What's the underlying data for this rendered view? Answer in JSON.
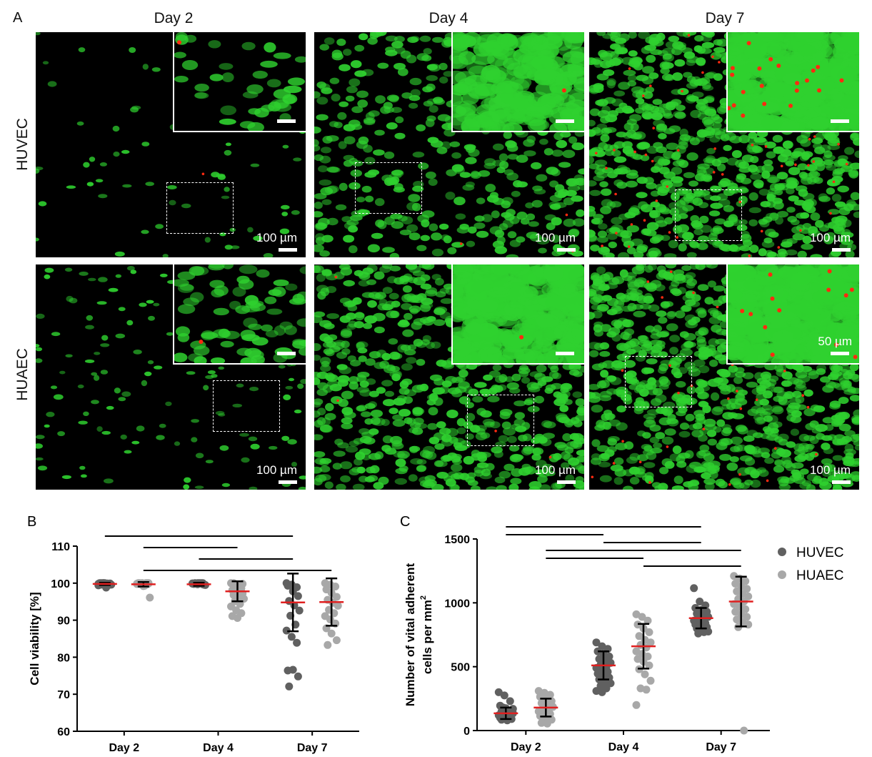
{
  "panel_a": {
    "letter": "A",
    "columns": [
      "Day 2",
      "Day 4",
      "Day 7"
    ],
    "rows": [
      "HUVEC",
      "HUAEC"
    ],
    "scale_labels": {
      "main": "100 µm",
      "inset_huaec_day7": "50 µm"
    },
    "colors": {
      "live_stain": "#2fd12f",
      "dead_stain": "#ff2a10"
    }
  },
  "chart_data": [
    {
      "panel": "B",
      "type": "scatter",
      "ylabel": "Cell viability [%]",
      "xlabel": "",
      "categories": [
        "Day 2",
        "Day 4",
        "Day 7"
      ],
      "ylim": [
        60,
        110
      ],
      "yticks": [
        60,
        70,
        80,
        90,
        100,
        110
      ],
      "series": [
        {
          "name": "HUVEC",
          "color": "#606060",
          "mean": [
            99.8,
            99.7,
            94.8
          ],
          "sd": [
            0.3,
            0.4,
            7.8
          ],
          "points": [
            [
              99.8,
              100,
              99.5,
              100,
              99.9,
              99.7,
              100,
              98.8,
              99.6,
              100,
              99.9,
              99.4,
              100,
              99.8,
              99.7,
              100,
              99.9,
              99.6
            ],
            [
              99.9,
              100,
              99.7,
              99.8,
              100,
              99.6,
              99.9,
              100,
              99.5,
              99.8,
              100,
              99.9,
              99.7,
              100,
              99.8,
              99.9,
              99.6,
              100
            ],
            [
              100,
              99.6,
              98.9,
              99.3,
              97.8,
              96.5,
              95.2,
              94,
              92.6,
              91.2,
              88.8,
              87.2,
              85.5,
              83.9,
              76.4,
              76.6,
              74.8,
              72.1
            ]
          ]
        },
        {
          "name": "HUAEC",
          "color": "#a8a8a8",
          "mean": [
            99.7,
            97.8,
            94.9
          ],
          "sd": [
            0.6,
            2.7,
            6.4
          ],
          "points": [
            [
              99.8,
              100,
              99.7,
              100,
              99.5,
              99.9,
              100,
              99.3,
              96.1,
              99.7,
              100,
              99.8,
              99.6,
              100,
              99.9,
              99.2,
              100,
              99.8
            ],
            [
              100,
              99.3,
              98.6,
              98.1,
              97.7,
              97.2,
              96.8,
              96.2,
              95.8,
              95.1,
              94.4,
              93.7,
              92.7,
              91.9,
              91.1,
              90.6,
              99.8,
              100
            ],
            [
              100,
              99.6,
              99.1,
              98.3,
              97.4,
              96.3,
              95.5,
              94.7,
              93.9,
              92.8,
              91.9,
              91.1,
              90.2,
              89.1,
              87.8,
              86.4,
              84.6,
              83.3
            ]
          ]
        }
      ],
      "significance": [
        [
          "Day 2 HUVEC",
          "Day 7 HUVEC"
        ],
        [
          "Day 2 HUAEC",
          "Day 4 HUAEC"
        ],
        [
          "Day 4 HUVEC",
          "Day 7 HUVEC"
        ],
        [
          "Day 2 HUAEC",
          "Day 7 HUAEC"
        ]
      ]
    },
    {
      "panel": "C",
      "type": "scatter",
      "ylabel": "Number of vital adherent cells per mm²",
      "ylabel_lines": [
        "Number of vital adherent",
        "cells per mm",
        "2"
      ],
      "xlabel": "",
      "categories": [
        "Day 2",
        "Day 4",
        "Day 7"
      ],
      "ylim": [
        0,
        1500
      ],
      "yticks": [
        0,
        500,
        1000,
        1500
      ],
      "legend": [
        {
          "name": "HUVEC",
          "color": "#606060"
        },
        {
          "name": "HUAEC",
          "color": "#a8a8a8"
        }
      ],
      "legend_position": "right",
      "series": [
        {
          "name": "HUVEC",
          "color": "#606060",
          "mean": [
            135,
            510,
            880
          ],
          "sd": [
            45,
            110,
            80
          ],
          "points": [
            [
              300,
              275,
              230,
              195,
              175,
              160,
              150,
              140,
              135,
              130,
              125,
              120,
              110,
              105,
              100,
              95,
              90,
              85,
              80,
              170,
              180
            ],
            [
              690,
              660,
              640,
              620,
              600,
              580,
              560,
              545,
              530,
              515,
              500,
              490,
              475,
              460,
              445,
              430,
              415,
              400,
              385,
              370,
              350,
              330,
              310,
              300
            ],
            [
              1115,
              1010,
              980,
              960,
              945,
              930,
              915,
              900,
              890,
              880,
              870,
              860,
              850,
              840,
              830,
              820,
              810,
              800,
              790,
              775,
              760,
              770
            ]
          ]
        },
        {
          "name": "HUAEC",
          "color": "#a8a8a8",
          "mean": [
            180,
            660,
            1010
          ],
          "sd": [
            70,
            175,
            195
          ],
          "points": [
            [
              310,
              295,
              280,
              265,
              250,
              230,
              215,
              200,
              185,
              170,
              160,
              150,
              140,
              130,
              115,
              100,
              85,
              60,
              55
            ],
            [
              910,
              890,
              860,
              830,
              800,
              770,
              740,
              710,
              690,
              670,
              650,
              620,
              600,
              580,
              560,
              540,
              510,
              480,
              440,
              390,
              330,
              320,
              200
            ],
            [
              1210,
              1190,
              1170,
              1150,
              1130,
              1110,
              1090,
              1070,
              1050,
              1030,
              1010,
              990,
              970,
              950,
              930,
              910,
              890,
              870,
              850,
              830,
              810,
              0
            ]
          ]
        }
      ],
      "significance": [
        [
          "Day 2 HUVEC",
          "Day 7 HUVEC"
        ],
        [
          "Day 2 HUVEC",
          "Day 4 HUVEC"
        ],
        [
          "Day 4 HUVEC",
          "Day 7 HUVEC"
        ],
        [
          "Day 2 HUAEC",
          "Day 7 HUAEC"
        ],
        [
          "Day 2 HUAEC",
          "Day 4 HUAEC"
        ],
        [
          "Day 4 HUAEC",
          "Day 7 HUAEC"
        ]
      ]
    }
  ]
}
